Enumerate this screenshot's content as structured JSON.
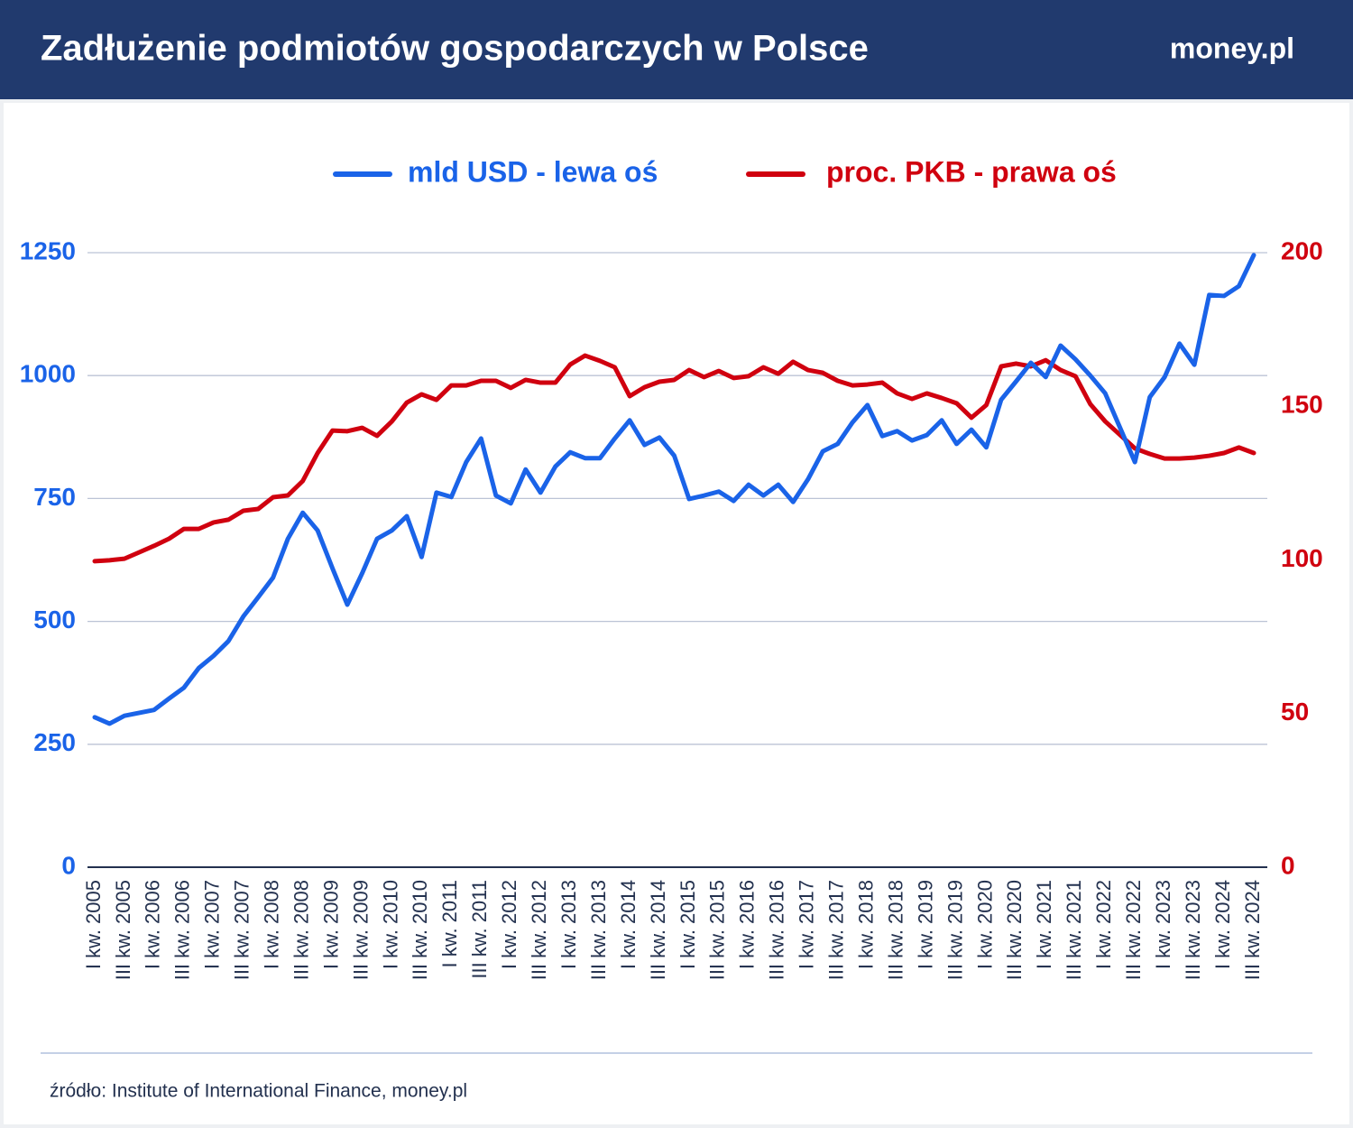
{
  "chart_data": {
    "type": "line",
    "title": "Zadłużenie podmiotów gospodarczych w Polsce",
    "logo": "money.pl",
    "source": "źródło: Institute of International Finance, money.pl",
    "categories": [
      "I kw. 2005",
      null,
      "III kw. 2005",
      null,
      "I kw. 2006",
      null,
      "III kw. 2006",
      null,
      "I kw. 2007",
      null,
      "III kw. 2007",
      null,
      "I kw. 2008",
      null,
      "III kw. 2008",
      null,
      "I kw. 2009",
      null,
      "III kw. 2009",
      null,
      "I kw. 2010",
      null,
      "III kw. 2010",
      null,
      "I kw. 2011",
      null,
      "III kw. 2011",
      null,
      "I kw. 2012",
      null,
      "III kw. 2012",
      null,
      "I kw. 2013",
      null,
      "III kw. 2013",
      null,
      "I kw. 2014",
      null,
      "III kw. 2014",
      null,
      "I kw. 2015",
      null,
      "III kw. 2015",
      null,
      "I kw. 2016",
      null,
      "III kw. 2016",
      null,
      "I kw. 2017",
      null,
      "III kw. 2017",
      null,
      "I kw. 2018",
      null,
      "III kw. 2018",
      null,
      "I kw. 2019",
      null,
      "III kw. 2019",
      null,
      "I kw. 2020",
      null,
      "III kw. 2020",
      null,
      "I kw. 2021",
      null,
      "III kw. 2021",
      null,
      "I kw. 2022",
      null,
      "III kw. 2022",
      null,
      "I kw. 2023",
      null,
      "III kw. 2023",
      null,
      "I kw. 2024",
      null,
      "III kw. 2024"
    ],
    "series": [
      {
        "name": "mld USD - lewa oś",
        "color": "#1a63e8",
        "axis": "y",
        "values": [
          305,
          292,
          308,
          314,
          320,
          343,
          365,
          405,
          430,
          460,
          510,
          549,
          589,
          668,
          721,
          685,
          608,
          534,
          598,
          668,
          685,
          714,
          631,
          762,
          753,
          824,
          872,
          756,
          740,
          809,
          762,
          815,
          844,
          832,
          832,
          872,
          909,
          859,
          874,
          837,
          749,
          756,
          764,
          745,
          778,
          756,
          778,
          743,
          789,
          846,
          861,
          905,
          940,
          877,
          887,
          868,
          879,
          909,
          861,
          890,
          854,
          951,
          988,
          1026,
          997,
          1061,
          1033,
          1000,
          964,
          894,
          824,
          956,
          997,
          1065,
          1022,
          1164,
          1162,
          1182,
          1245
        ]
      },
      {
        "name": "proc. PKB - prawa oś",
        "color": "#d0000f",
        "axis": "y2",
        "values": [
          99.6,
          99.9,
          100.4,
          102.5,
          104.6,
          106.9,
          110.1,
          110.1,
          112.2,
          113.1,
          116,
          116.6,
          120.4,
          121,
          125.7,
          134.8,
          142.1,
          141.9,
          143,
          140.4,
          145.1,
          151.2,
          153.9,
          152.1,
          156.8,
          156.8,
          158.3,
          158.3,
          156,
          158.6,
          157.7,
          157.7,
          163.6,
          166.5,
          164.8,
          162.7,
          153.3,
          156.2,
          158,
          158.6,
          161.8,
          159.5,
          161.5,
          159.2,
          159.8,
          162.7,
          160.6,
          164.5,
          161.8,
          160.9,
          158.3,
          156.8,
          157.1,
          157.7,
          154.2,
          152.4,
          154.2,
          152.7,
          151,
          146.3,
          150.4,
          163,
          163.9,
          163,
          165,
          161.8,
          159.8,
          150.7,
          145.1,
          140.7,
          136.3,
          134.5,
          133,
          133,
          133.3,
          133.9,
          134.8,
          136.6,
          134.8
        ]
      }
    ],
    "ylim": [
      0,
      1250
    ],
    "yticks": [
      0,
      250,
      500,
      750,
      1000,
      1250
    ],
    "y2lim": [
      0,
      200
    ],
    "y2ticks": [
      0,
      50,
      100,
      150,
      200
    ],
    "grid": true
  }
}
